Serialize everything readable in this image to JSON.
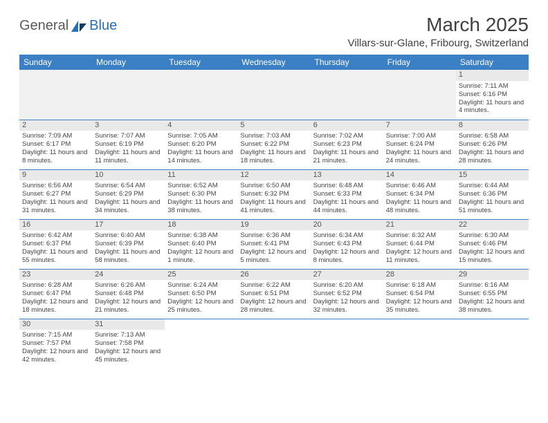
{
  "brand": {
    "part1": "General",
    "part2": "Blue"
  },
  "title": "March 2025",
  "location": "Villars-sur-Glane, Fribourg, Switzerland",
  "colors": {
    "header_bg": "#3b7fc4",
    "header_fg": "#ffffff",
    "daynum_bg": "#e9e9e9",
    "border": "#3b7fc4",
    "logo_gray": "#5a5a5a",
    "logo_blue": "#2a6fb5"
  },
  "weekdays": [
    "Sunday",
    "Monday",
    "Tuesday",
    "Wednesday",
    "Thursday",
    "Friday",
    "Saturday"
  ],
  "weeks": [
    [
      null,
      null,
      null,
      null,
      null,
      null,
      {
        "d": "1",
        "sr": "Sunrise: 7:11 AM",
        "ss": "Sunset: 6:16 PM",
        "dl": "Daylight: 11 hours and 4 minutes."
      }
    ],
    [
      {
        "d": "2",
        "sr": "Sunrise: 7:09 AM",
        "ss": "Sunset: 6:17 PM",
        "dl": "Daylight: 11 hours and 8 minutes."
      },
      {
        "d": "3",
        "sr": "Sunrise: 7:07 AM",
        "ss": "Sunset: 6:19 PM",
        "dl": "Daylight: 11 hours and 11 minutes."
      },
      {
        "d": "4",
        "sr": "Sunrise: 7:05 AM",
        "ss": "Sunset: 6:20 PM",
        "dl": "Daylight: 11 hours and 14 minutes."
      },
      {
        "d": "5",
        "sr": "Sunrise: 7:03 AM",
        "ss": "Sunset: 6:22 PM",
        "dl": "Daylight: 11 hours and 18 minutes."
      },
      {
        "d": "6",
        "sr": "Sunrise: 7:02 AM",
        "ss": "Sunset: 6:23 PM",
        "dl": "Daylight: 11 hours and 21 minutes."
      },
      {
        "d": "7",
        "sr": "Sunrise: 7:00 AM",
        "ss": "Sunset: 6:24 PM",
        "dl": "Daylight: 11 hours and 24 minutes."
      },
      {
        "d": "8",
        "sr": "Sunrise: 6:58 AM",
        "ss": "Sunset: 6:26 PM",
        "dl": "Daylight: 11 hours and 28 minutes."
      }
    ],
    [
      {
        "d": "9",
        "sr": "Sunrise: 6:56 AM",
        "ss": "Sunset: 6:27 PM",
        "dl": "Daylight: 11 hours and 31 minutes."
      },
      {
        "d": "10",
        "sr": "Sunrise: 6:54 AM",
        "ss": "Sunset: 6:29 PM",
        "dl": "Daylight: 11 hours and 34 minutes."
      },
      {
        "d": "11",
        "sr": "Sunrise: 6:52 AM",
        "ss": "Sunset: 6:30 PM",
        "dl": "Daylight: 11 hours and 38 minutes."
      },
      {
        "d": "12",
        "sr": "Sunrise: 6:50 AM",
        "ss": "Sunset: 6:32 PM",
        "dl": "Daylight: 11 hours and 41 minutes."
      },
      {
        "d": "13",
        "sr": "Sunrise: 6:48 AM",
        "ss": "Sunset: 6:33 PM",
        "dl": "Daylight: 11 hours and 44 minutes."
      },
      {
        "d": "14",
        "sr": "Sunrise: 6:46 AM",
        "ss": "Sunset: 6:34 PM",
        "dl": "Daylight: 11 hours and 48 minutes."
      },
      {
        "d": "15",
        "sr": "Sunrise: 6:44 AM",
        "ss": "Sunset: 6:36 PM",
        "dl": "Daylight: 11 hours and 51 minutes."
      }
    ],
    [
      {
        "d": "16",
        "sr": "Sunrise: 6:42 AM",
        "ss": "Sunset: 6:37 PM",
        "dl": "Daylight: 11 hours and 55 minutes."
      },
      {
        "d": "17",
        "sr": "Sunrise: 6:40 AM",
        "ss": "Sunset: 6:39 PM",
        "dl": "Daylight: 11 hours and 58 minutes."
      },
      {
        "d": "18",
        "sr": "Sunrise: 6:38 AM",
        "ss": "Sunset: 6:40 PM",
        "dl": "Daylight: 12 hours and 1 minute."
      },
      {
        "d": "19",
        "sr": "Sunrise: 6:36 AM",
        "ss": "Sunset: 6:41 PM",
        "dl": "Daylight: 12 hours and 5 minutes."
      },
      {
        "d": "20",
        "sr": "Sunrise: 6:34 AM",
        "ss": "Sunset: 6:43 PM",
        "dl": "Daylight: 12 hours and 8 minutes."
      },
      {
        "d": "21",
        "sr": "Sunrise: 6:32 AM",
        "ss": "Sunset: 6:44 PM",
        "dl": "Daylight: 12 hours and 11 minutes."
      },
      {
        "d": "22",
        "sr": "Sunrise: 6:30 AM",
        "ss": "Sunset: 6:46 PM",
        "dl": "Daylight: 12 hours and 15 minutes."
      }
    ],
    [
      {
        "d": "23",
        "sr": "Sunrise: 6:28 AM",
        "ss": "Sunset: 6:47 PM",
        "dl": "Daylight: 12 hours and 18 minutes."
      },
      {
        "d": "24",
        "sr": "Sunrise: 6:26 AM",
        "ss": "Sunset: 6:48 PM",
        "dl": "Daylight: 12 hours and 21 minutes."
      },
      {
        "d": "25",
        "sr": "Sunrise: 6:24 AM",
        "ss": "Sunset: 6:50 PM",
        "dl": "Daylight: 12 hours and 25 minutes."
      },
      {
        "d": "26",
        "sr": "Sunrise: 6:22 AM",
        "ss": "Sunset: 6:51 PM",
        "dl": "Daylight: 12 hours and 28 minutes."
      },
      {
        "d": "27",
        "sr": "Sunrise: 6:20 AM",
        "ss": "Sunset: 6:52 PM",
        "dl": "Daylight: 12 hours and 32 minutes."
      },
      {
        "d": "28",
        "sr": "Sunrise: 6:18 AM",
        "ss": "Sunset: 6:54 PM",
        "dl": "Daylight: 12 hours and 35 minutes."
      },
      {
        "d": "29",
        "sr": "Sunrise: 6:16 AM",
        "ss": "Sunset: 6:55 PM",
        "dl": "Daylight: 12 hours and 38 minutes."
      }
    ],
    [
      {
        "d": "30",
        "sr": "Sunrise: 7:15 AM",
        "ss": "Sunset: 7:57 PM",
        "dl": "Daylight: 12 hours and 42 minutes."
      },
      {
        "d": "31",
        "sr": "Sunrise: 7:13 AM",
        "ss": "Sunset: 7:58 PM",
        "dl": "Daylight: 12 hours and 45 minutes."
      },
      null,
      null,
      null,
      null,
      null
    ]
  ]
}
